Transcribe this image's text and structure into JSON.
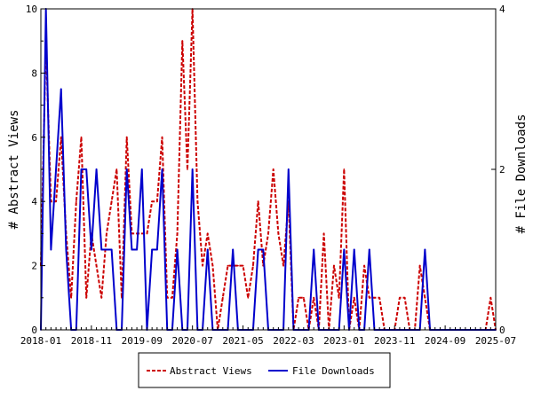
{
  "chart_data": {
    "type": "line",
    "ylabel": "# Abstract Views",
    "y2label": "# File Downloads",
    "ylim": [
      0,
      10
    ],
    "y2lim": [
      0,
      4
    ],
    "yticks": [
      "0",
      "2",
      "4",
      "6",
      "8",
      "10"
    ],
    "y2ticks": [
      "0",
      "2",
      "4"
    ],
    "xstart": "2018-01",
    "xend": "2025-07",
    "xticks": [
      "2018-01",
      "2018-11",
      "2019-09",
      "2020-07",
      "2021-05",
      "2022-03",
      "2023-01",
      "2023-11",
      "2024-09",
      "2025-07"
    ],
    "legend_position": "bottom-center",
    "grid": false,
    "series": [
      {
        "name": "Abstract Views",
        "axis": "left",
        "color": "#cc0000",
        "style": "dashed",
        "points": [
          [
            "2018-01",
            2
          ],
          [
            "2018-02",
            9
          ],
          [
            "2018-03",
            4
          ],
          [
            "2018-04",
            4
          ],
          [
            "2018-05",
            6
          ],
          [
            "2018-06",
            3
          ],
          [
            "2018-07",
            1
          ],
          [
            "2018-08",
            4
          ],
          [
            "2018-09",
            6
          ],
          [
            "2018-10",
            1
          ],
          [
            "2018-11",
            3
          ],
          [
            "2018-12",
            2
          ],
          [
            "2019-01",
            1
          ],
          [
            "2019-02",
            3
          ],
          [
            "2019-03",
            4
          ],
          [
            "2019-04",
            5
          ],
          [
            "2019-05",
            1
          ],
          [
            "2019-06",
            6
          ],
          [
            "2019-07",
            3
          ],
          [
            "2019-08",
            3
          ],
          [
            "2019-09",
            3
          ],
          [
            "2019-10",
            3
          ],
          [
            "2019-11",
            4
          ],
          [
            "2019-12",
            4
          ],
          [
            "2020-01",
            6
          ],
          [
            "2020-02",
            1
          ],
          [
            "2020-03",
            1
          ],
          [
            "2020-04",
            3
          ],
          [
            "2020-05",
            9
          ],
          [
            "2020-06",
            5
          ],
          [
            "2020-07",
            10
          ],
          [
            "2020-08",
            4
          ],
          [
            "2020-09",
            2
          ],
          [
            "2020-10",
            3
          ],
          [
            "2020-11",
            2
          ],
          [
            "2020-12",
            0
          ],
          [
            "2021-01",
            1
          ],
          [
            "2021-02",
            2
          ],
          [
            "2021-03",
            2
          ],
          [
            "2021-04",
            2
          ],
          [
            "2021-05",
            2
          ],
          [
            "2021-06",
            1
          ],
          [
            "2021-07",
            2
          ],
          [
            "2021-08",
            4
          ],
          [
            "2021-09",
            2
          ],
          [
            "2021-10",
            3
          ],
          [
            "2021-11",
            5
          ],
          [
            "2021-12",
            3
          ],
          [
            "2022-01",
            2
          ],
          [
            "2022-02",
            4
          ],
          [
            "2022-03",
            0
          ],
          [
            "2022-04",
            1
          ],
          [
            "2022-05",
            1
          ],
          [
            "2022-06",
            0
          ],
          [
            "2022-07",
            1
          ],
          [
            "2022-08",
            0
          ],
          [
            "2022-09",
            3
          ],
          [
            "2022-10",
            0
          ],
          [
            "2022-11",
            2
          ],
          [
            "2022-12",
            1
          ],
          [
            "2023-01",
            5
          ],
          [
            "2023-02",
            0
          ],
          [
            "2023-03",
            1
          ],
          [
            "2023-04",
            0
          ],
          [
            "2023-05",
            2
          ],
          [
            "2023-06",
            1
          ],
          [
            "2023-07",
            1
          ],
          [
            "2023-08",
            1
          ],
          [
            "2023-09",
            0
          ],
          [
            "2023-10",
            0
          ],
          [
            "2023-11",
            0
          ],
          [
            "2023-12",
            1
          ],
          [
            "2024-01",
            1
          ],
          [
            "2024-02",
            0
          ],
          [
            "2024-03",
            0
          ],
          [
            "2024-04",
            2
          ],
          [
            "2024-05",
            1
          ],
          [
            "2024-06",
            0
          ],
          [
            "2024-07",
            0
          ],
          [
            "2024-08",
            0
          ],
          [
            "2024-09",
            0
          ],
          [
            "2024-10",
            0
          ],
          [
            "2024-11",
            0
          ],
          [
            "2024-12",
            0
          ],
          [
            "2025-01",
            0
          ],
          [
            "2025-02",
            0
          ],
          [
            "2025-03",
            0
          ],
          [
            "2025-04",
            0
          ],
          [
            "2025-05",
            0
          ],
          [
            "2025-06",
            1
          ],
          [
            "2025-07",
            0
          ]
        ]
      },
      {
        "name": "File Downloads",
        "axis": "right",
        "color": "#0000cc",
        "style": "solid",
        "points": [
          [
            "2018-01",
            0
          ],
          [
            "2018-02",
            4
          ],
          [
            "2018-03",
            1
          ],
          [
            "2018-04",
            2
          ],
          [
            "2018-05",
            3
          ],
          [
            "2018-06",
            1
          ],
          [
            "2018-07",
            0
          ],
          [
            "2018-08",
            0
          ],
          [
            "2018-09",
            2
          ],
          [
            "2018-10",
            2
          ],
          [
            "2018-11",
            1
          ],
          [
            "2018-12",
            2
          ],
          [
            "2019-01",
            1
          ],
          [
            "2019-02",
            1
          ],
          [
            "2019-03",
            1
          ],
          [
            "2019-04",
            0
          ],
          [
            "2019-05",
            0
          ],
          [
            "2019-06",
            2
          ],
          [
            "2019-07",
            1
          ],
          [
            "2019-08",
            1
          ],
          [
            "2019-09",
            2
          ],
          [
            "2019-10",
            0
          ],
          [
            "2019-11",
            1
          ],
          [
            "2019-12",
            1
          ],
          [
            "2020-01",
            2
          ],
          [
            "2020-02",
            0
          ],
          [
            "2020-03",
            0
          ],
          [
            "2020-04",
            1
          ],
          [
            "2020-05",
            0
          ],
          [
            "2020-06",
            0
          ],
          [
            "2020-07",
            2
          ],
          [
            "2020-08",
            0
          ],
          [
            "2020-09",
            0
          ],
          [
            "2020-10",
            1
          ],
          [
            "2020-11",
            0
          ],
          [
            "2020-12",
            0
          ],
          [
            "2021-01",
            0
          ],
          [
            "2021-02",
            0
          ],
          [
            "2021-03",
            1
          ],
          [
            "2021-04",
            0
          ],
          [
            "2021-05",
            0
          ],
          [
            "2021-06",
            0
          ],
          [
            "2021-07",
            0
          ],
          [
            "2021-08",
            1
          ],
          [
            "2021-09",
            1
          ],
          [
            "2021-10",
            0
          ],
          [
            "2021-11",
            0
          ],
          [
            "2021-12",
            0
          ],
          [
            "2022-01",
            0
          ],
          [
            "2022-02",
            2
          ],
          [
            "2022-03",
            0
          ],
          [
            "2022-04",
            0
          ],
          [
            "2022-05",
            0
          ],
          [
            "2022-06",
            0
          ],
          [
            "2022-07",
            1
          ],
          [
            "2022-08",
            0
          ],
          [
            "2022-09",
            0
          ],
          [
            "2022-10",
            0
          ],
          [
            "2022-11",
            0
          ],
          [
            "2022-12",
            0
          ],
          [
            "2023-01",
            1
          ],
          [
            "2023-02",
            0
          ],
          [
            "2023-03",
            1
          ],
          [
            "2023-04",
            0
          ],
          [
            "2023-05",
            0
          ],
          [
            "2023-06",
            1
          ],
          [
            "2023-07",
            0
          ],
          [
            "2023-08",
            0
          ],
          [
            "2023-09",
            0
          ],
          [
            "2023-10",
            0
          ],
          [
            "2023-11",
            0
          ],
          [
            "2023-12",
            0
          ],
          [
            "2024-01",
            0
          ],
          [
            "2024-02",
            0
          ],
          [
            "2024-03",
            0
          ],
          [
            "2024-04",
            0
          ],
          [
            "2024-05",
            1
          ],
          [
            "2024-06",
            0
          ],
          [
            "2024-07",
            0
          ],
          [
            "2024-08",
            0
          ],
          [
            "2024-09",
            0
          ],
          [
            "2024-10",
            0
          ],
          [
            "2024-11",
            0
          ],
          [
            "2024-12",
            0
          ],
          [
            "2025-01",
            0
          ],
          [
            "2025-02",
            0
          ],
          [
            "2025-03",
            0
          ],
          [
            "2025-04",
            0
          ],
          [
            "2025-05",
            0
          ],
          [
            "2025-06",
            0
          ],
          [
            "2025-07",
            0
          ]
        ]
      }
    ]
  }
}
